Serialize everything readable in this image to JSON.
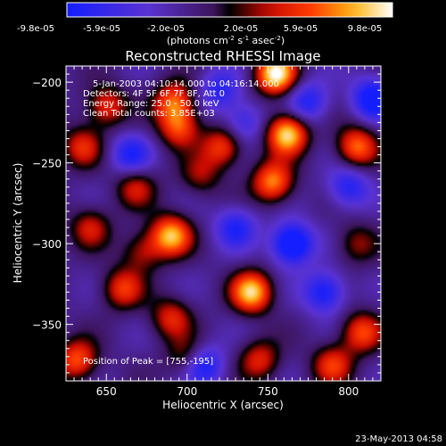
{
  "chart_data": {
    "type": "heatmap",
    "title": "Reconstructed RHESSI Image",
    "xlabel": "Heliocentric X (arcsec)",
    "ylabel": "Heliocentric Y (arcsec)",
    "xlim": [
      625,
      820
    ],
    "ylim": [
      -385,
      -190
    ],
    "xticks": [
      "650",
      "700",
      "750",
      "800"
    ],
    "yticks": [
      "-200",
      "-250",
      "-300",
      "-350"
    ],
    "colorbar": {
      "ticks": [
        "-9.8e-05",
        "-5.9e-05",
        "-2.0e-05",
        "2.0e-05",
        "5.9e-05",
        "9.8e-05"
      ],
      "range": [
        -9.8e-05,
        9.8e-05
      ],
      "unit_prefix": "(photons cm",
      "unit_exp1": "-2",
      "unit_mid": " s",
      "unit_exp2": "-1",
      "unit_mid2": " asec",
      "unit_exp3": "-2",
      "unit_suffix": ")"
    },
    "annotations": [
      "5-Jan-2003 04:10:14.000 to 04:16:14.000",
      "Detectors: 4F 5F 6F 7F 8F, Att 0",
      "Energy Range: 25.0 - 50.0 keV",
      "Clean     Total counts: 3.85E+03"
    ],
    "peak_label": "Position of Peak = [755,-195]",
    "peaks": [
      {
        "x": 755,
        "y": -195,
        "v": 1.0
      },
      {
        "x": 762,
        "y": -232,
        "v": 0.95
      },
      {
        "x": 690,
        "y": -295,
        "v": 0.85
      },
      {
        "x": 740,
        "y": -330,
        "v": 0.9
      },
      {
        "x": 753,
        "y": -262,
        "v": 0.75
      },
      {
        "x": 805,
        "y": -240,
        "v": 0.7
      },
      {
        "x": 722,
        "y": -240,
        "v": 0.6
      },
      {
        "x": 692,
        "y": -212,
        "v": 0.65
      },
      {
        "x": 695,
        "y": -228,
        "v": 0.6
      },
      {
        "x": 650,
        "y": -215,
        "v": 0.55
      },
      {
        "x": 635,
        "y": -240,
        "v": 0.5
      },
      {
        "x": 660,
        "y": -328,
        "v": 0.55
      },
      {
        "x": 632,
        "y": -372,
        "v": 0.65
      },
      {
        "x": 690,
        "y": -346,
        "v": 0.5
      },
      {
        "x": 808,
        "y": -355,
        "v": 0.6
      },
      {
        "x": 790,
        "y": -375,
        "v": 0.55
      },
      {
        "x": 745,
        "y": -372,
        "v": 0.5
      },
      {
        "x": 668,
        "y": -265,
        "v": 0.45
      },
      {
        "x": 640,
        "y": -290,
        "v": 0.45
      },
      {
        "x": 672,
        "y": -305,
        "v": 0.4
      },
      {
        "x": 708,
        "y": -258,
        "v": 0.35
      },
      {
        "x": 700,
        "y": -370,
        "v": 0.4
      },
      {
        "x": 805,
        "y": -300,
        "v": 0.35
      }
    ],
    "troughs": [
      {
        "x": 765,
        "y": -300,
        "v": -0.85
      },
      {
        "x": 785,
        "y": -330,
        "v": -0.6
      },
      {
        "x": 710,
        "y": -375,
        "v": -0.6
      },
      {
        "x": 815,
        "y": -210,
        "v": -0.7
      },
      {
        "x": 665,
        "y": -245,
        "v": -0.5
      },
      {
        "x": 800,
        "y": -265,
        "v": -0.5
      },
      {
        "x": 735,
        "y": -225,
        "v": -0.4
      },
      {
        "x": 730,
        "y": -290,
        "v": -0.5
      },
      {
        "x": 775,
        "y": -212,
        "v": -0.5
      },
      {
        "x": 720,
        "y": -205,
        "v": -0.45
      }
    ]
  },
  "footer": {
    "timestamp": "23-May-2013 04:58"
  }
}
